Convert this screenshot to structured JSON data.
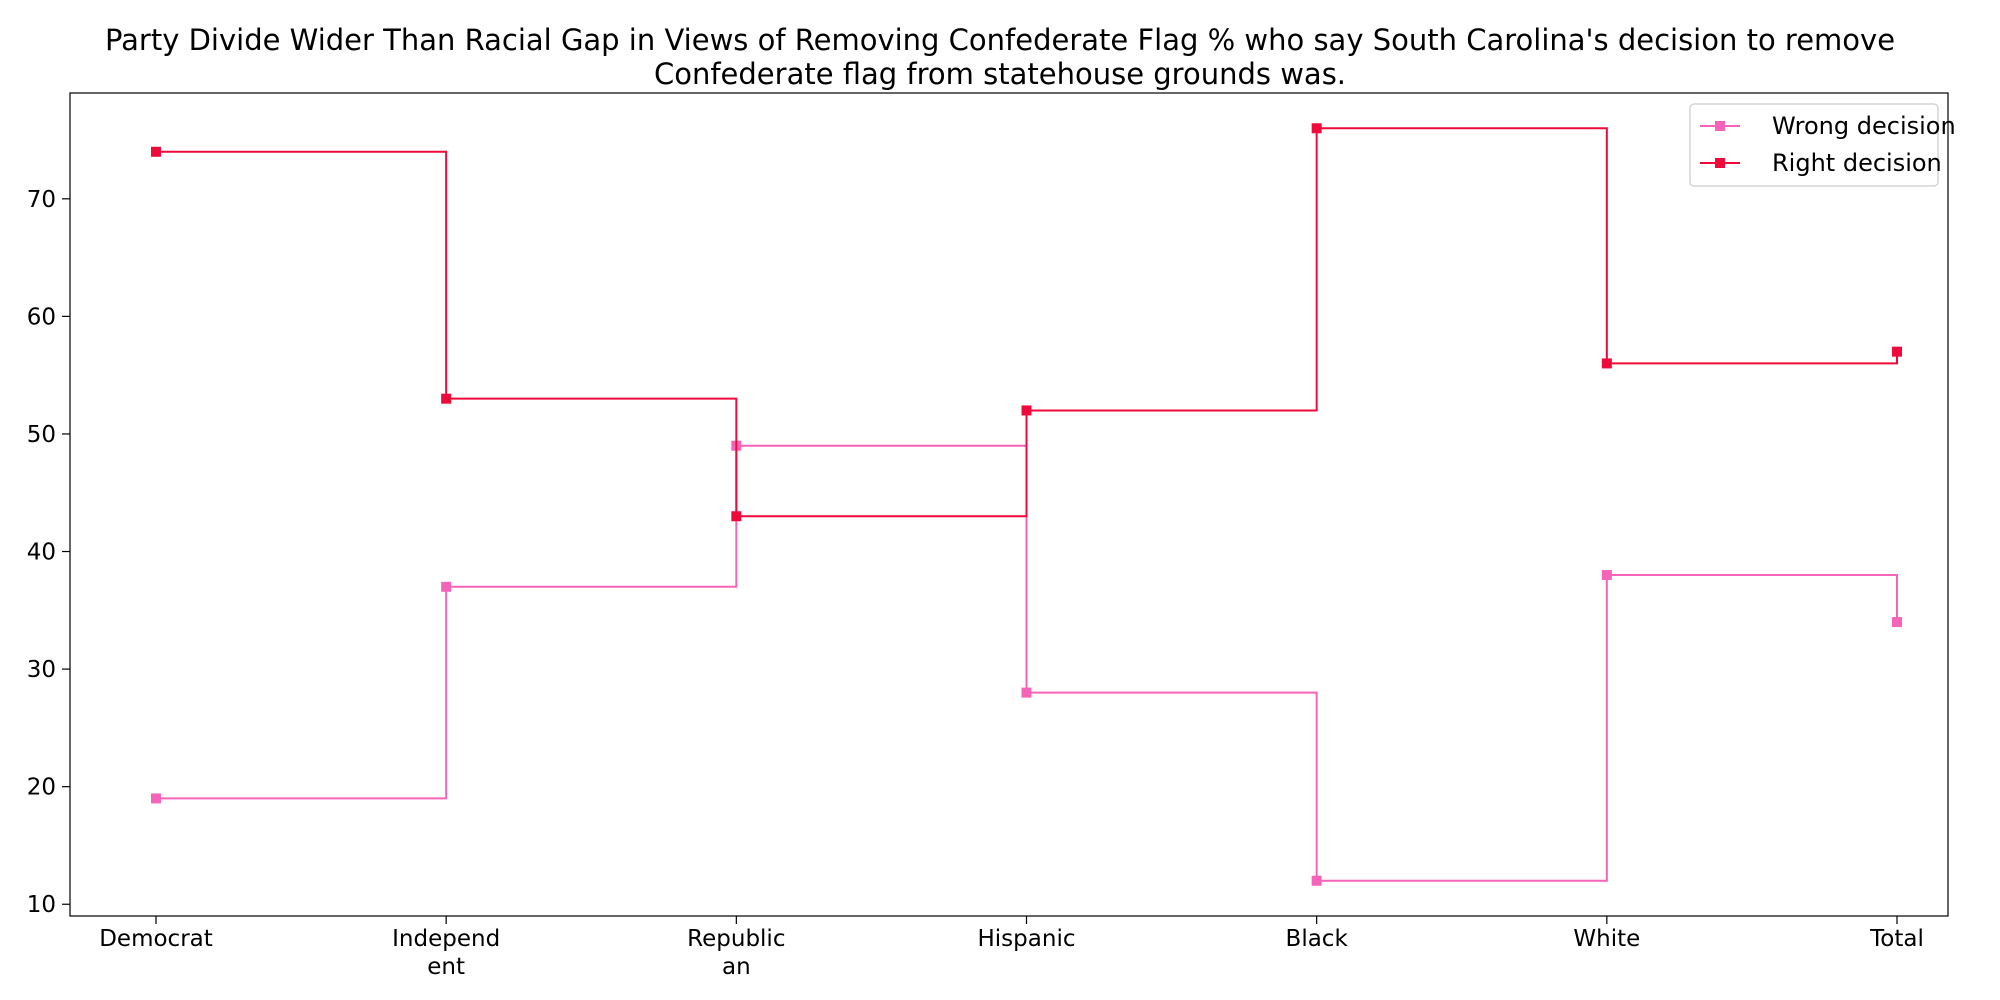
{
  "chart_data": {
    "type": "line",
    "style": "step-post",
    "title": "Party Divide Wider Than Racial Gap in Views of Removing Confederate Flag % who say South Carolina's decision to remove Confederate flag from statehouse grounds was.",
    "title_lines": [
      "Party Divide Wider Than Racial Gap in Views of Removing Confederate Flag % who say South Carolina's decision to remove",
      "Confederate flag from statehouse grounds was."
    ],
    "categories": [
      "Democrat",
      "Independent",
      "Republican",
      "Hispanic",
      "Black",
      "White",
      "Total"
    ],
    "category_tick_lines": [
      [
        "Democrat"
      ],
      [
        "Independ",
        "ent"
      ],
      [
        "Republic",
        "an"
      ],
      [
        "Hispanic"
      ],
      [
        "Black"
      ],
      [
        "White"
      ],
      [
        "Total"
      ]
    ],
    "xlabel": "",
    "ylabel": "",
    "ylim": [
      9,
      79
    ],
    "yticks": [
      10,
      20,
      30,
      40,
      50,
      60,
      70
    ],
    "grid": false,
    "legend_position": "top-right",
    "series": [
      {
        "name": "Wrong decision",
        "color": "#f564b8",
        "marker": "square",
        "values": [
          19,
          37,
          49,
          28,
          12,
          38,
          34
        ]
      },
      {
        "name": "Right decision",
        "color": "#ee0a3a",
        "marker": "square",
        "values": [
          74,
          53,
          43,
          52,
          76,
          56,
          57
        ]
      }
    ]
  }
}
